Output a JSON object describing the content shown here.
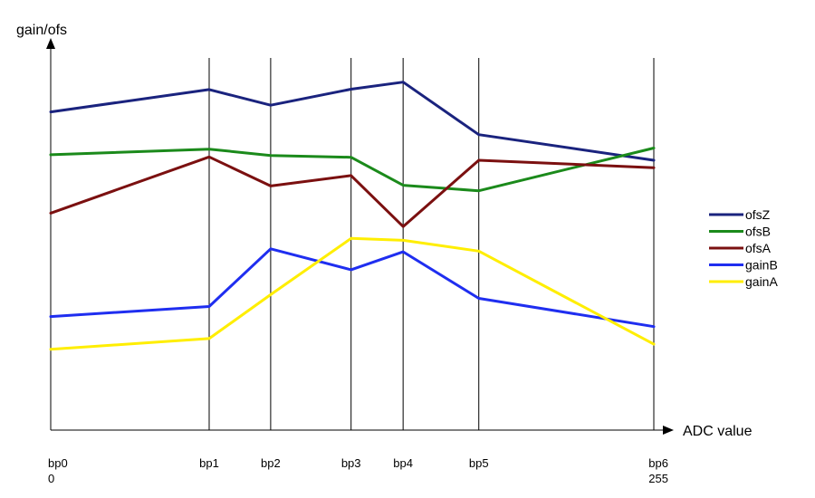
{
  "chart_data": {
    "type": "line",
    "ylabel": "gain/ofs",
    "xlabel": "ADC value",
    "breakpoints": [
      {
        "name": "bp0",
        "value": 0,
        "value_label": "0"
      },
      {
        "name": "bp1",
        "value": 67
      },
      {
        "name": "bp2",
        "value": 93
      },
      {
        "name": "bp3",
        "value": 127
      },
      {
        "name": "bp4",
        "value": 149
      },
      {
        "name": "bp5",
        "value": 181
      },
      {
        "name": "bp6",
        "value": 255,
        "value_label": "255"
      }
    ],
    "xlim": [
      0,
      255
    ],
    "ylim": [
      0,
      100
    ],
    "series": [
      {
        "name": "ofsZ",
        "color": "#1a237e",
        "values": [
          85.5,
          91.5,
          87.3,
          91.6,
          93.5,
          79.4,
          72.5
        ]
      },
      {
        "name": "ofsB",
        "color": "#1b8a1b",
        "values": [
          74,
          75.5,
          73.8,
          73.3,
          65.8,
          64.3,
          75.8
        ]
      },
      {
        "name": "ofsA",
        "color": "#7b1010",
        "values": [
          58.3,
          73.4,
          65.6,
          68.4,
          54.7,
          72.5,
          70.5
        ]
      },
      {
        "name": "gainB",
        "color": "#1f2ef0",
        "values": [
          30.5,
          33.2,
          48.7,
          43.1,
          47.9,
          35.4,
          27.8
        ]
      },
      {
        "name": "gainA",
        "color": "#ffee00",
        "values": [
          21.7,
          24.6,
          36.4,
          51.5,
          51.0,
          48.1,
          23.1
        ]
      }
    ],
    "grid": false,
    "legend_position": "right"
  }
}
